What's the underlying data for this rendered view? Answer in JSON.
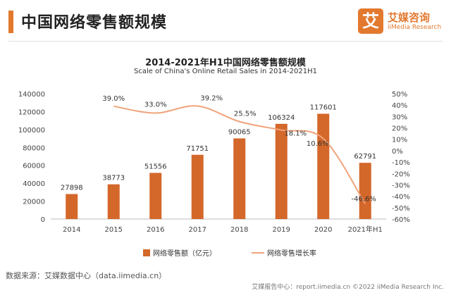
{
  "header": {
    "title": "中国网络零售额规模",
    "logo_mark": "艾",
    "logo_name": "艾媒咨询",
    "logo_sub": "iiMedia Research"
  },
  "chart_data": {
    "type": "bar",
    "title": "2014-2021年H1中国网络零售额规模",
    "subtitle": "Scale of China's Online Retail Sales in 2014-2021H1",
    "categories": [
      "2014",
      "2015",
      "2016",
      "2017",
      "2018",
      "2019",
      "2020",
      "2021年H1"
    ],
    "series": [
      {
        "name": "网络零售额（亿元）",
        "type": "bar",
        "axis": "left",
        "values": [
          27898,
          38773,
          51556,
          71751,
          90065,
          106324,
          117601,
          62791
        ],
        "labels": [
          "27898",
          "38773",
          "51556",
          "71751",
          "90065",
          "106324",
          "117601",
          "62791"
        ],
        "color": "#d4672a"
      },
      {
        "name": "网络零售增长率",
        "type": "line",
        "axis": "right",
        "values": [
          null,
          39.0,
          33.0,
          39.2,
          25.5,
          18.1,
          10.6,
          -46.6
        ],
        "labels": [
          "",
          "39.0%",
          "33.0%",
          "39.2%",
          "25.5%",
          "18.1%",
          "10.6%",
          "-46.6%"
        ],
        "color": "#f0a37a"
      }
    ],
    "y_left": {
      "min": 0,
      "max": 140000,
      "ticks": [
        "0",
        "20000",
        "40000",
        "60000",
        "80000",
        "100000",
        "120000",
        "140000"
      ]
    },
    "y_right": {
      "min": -60,
      "max": 50,
      "ticks": [
        "50%",
        "40%",
        "30%",
        "20%",
        "10%",
        "0%",
        "-10%",
        "-20%",
        "-30%",
        "-40%",
        "-50%",
        "-60%"
      ]
    },
    "legend_position": "bottom",
    "grid": false
  },
  "source": "数据来源：艾媒数据中心（data.iimedia.cn）",
  "footer": "艾媒报告中心：report.iimedia.cn ©2022 iiMedia Research Inc."
}
